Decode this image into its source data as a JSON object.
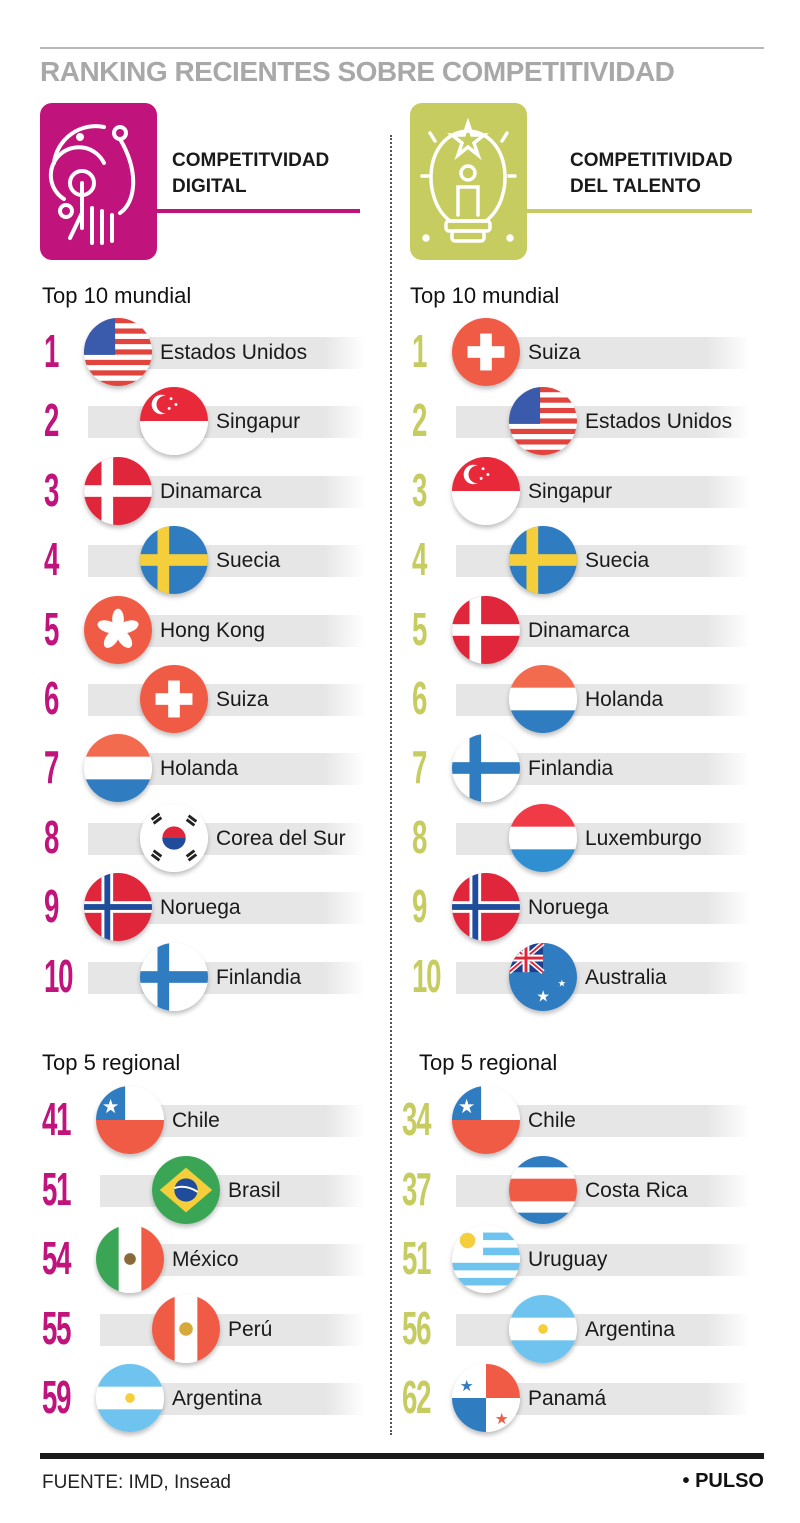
{
  "title": "RANKING RECIENTES SOBRE COMPETITIVIDAD",
  "colors": {
    "digital": "#c0137c",
    "talent": "#c6cc5f",
    "bar": "#e6e6e6"
  },
  "digital": {
    "heading_line1": "COMPETITVIDAD",
    "heading_line2": "DIGITAL",
    "icon": "hand-touch-icon",
    "world_label": "Top 10 mundial",
    "world": [
      {
        "rank": "1",
        "country": "Estados Unidos",
        "flag": "us"
      },
      {
        "rank": "2",
        "country": "Singapur",
        "flag": "sg"
      },
      {
        "rank": "3",
        "country": "Dinamarca",
        "flag": "dk"
      },
      {
        "rank": "4",
        "country": "Suecia",
        "flag": "se"
      },
      {
        "rank": "5",
        "country": "Hong Kong",
        "flag": "hk"
      },
      {
        "rank": "6",
        "country": "Suiza",
        "flag": "ch"
      },
      {
        "rank": "7",
        "country": "Holanda",
        "flag": "nl"
      },
      {
        "rank": "8",
        "country": "Corea del Sur",
        "flag": "kr"
      },
      {
        "rank": "9",
        "country": "Noruega",
        "flag": "no"
      },
      {
        "rank": "10",
        "country": "Finlandia",
        "flag": "fi"
      }
    ],
    "regional_label": "Top 5 regional",
    "regional": [
      {
        "rank": "41",
        "country": "Chile",
        "flag": "cl"
      },
      {
        "rank": "51",
        "country": "Brasil",
        "flag": "br"
      },
      {
        "rank": "54",
        "country": "México",
        "flag": "mx"
      },
      {
        "rank": "55",
        "country": "Perú",
        "flag": "pe"
      },
      {
        "rank": "59",
        "country": "Argentina",
        "flag": "ar"
      }
    ]
  },
  "talent": {
    "heading_line1": "COMPETITIVIDAD",
    "heading_line2": "DEL TALENTO",
    "icon": "lightbulb-person-icon",
    "world_label": "Top 10 mundial",
    "world": [
      {
        "rank": "1",
        "country": "Suiza",
        "flag": "ch"
      },
      {
        "rank": "2",
        "country": "Estados Unidos",
        "flag": "us"
      },
      {
        "rank": "3",
        "country": "Singapur",
        "flag": "sg"
      },
      {
        "rank": "4",
        "country": "Suecia",
        "flag": "se"
      },
      {
        "rank": "5",
        "country": "Dinamarca",
        "flag": "dk"
      },
      {
        "rank": "6",
        "country": "Holanda",
        "flag": "nl"
      },
      {
        "rank": "7",
        "country": "Finlandia",
        "flag": "fi"
      },
      {
        "rank": "8",
        "country": "Luxemburgo",
        "flag": "lu"
      },
      {
        "rank": "9",
        "country": "Noruega",
        "flag": "no"
      },
      {
        "rank": "10",
        "country": "Australia",
        "flag": "au"
      }
    ],
    "regional_label": "Top 5 regional",
    "regional": [
      {
        "rank": "34",
        "country": "Chile",
        "flag": "cl"
      },
      {
        "rank": "37",
        "country": "Costa Rica",
        "flag": "cr"
      },
      {
        "rank": "51",
        "country": "Uruguay",
        "flag": "uy"
      },
      {
        "rank": "56",
        "country": "Argentina",
        "flag": "ar"
      },
      {
        "rank": "62",
        "country": "Panamá",
        "flag": "pa"
      }
    ]
  },
  "footer": {
    "source": "FUENTE: IMD, Insead",
    "brand": "• PULSO"
  }
}
